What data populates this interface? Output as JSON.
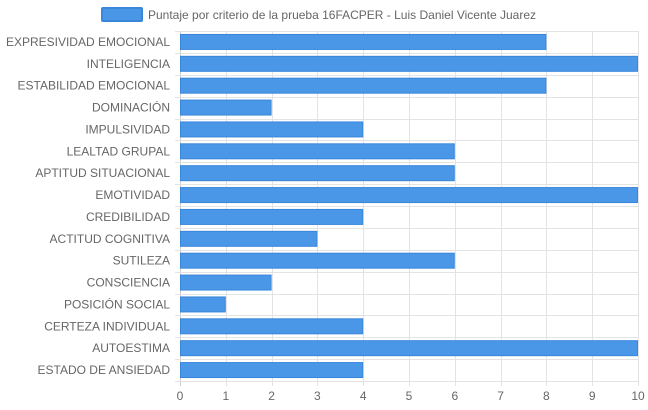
{
  "chart_data": {
    "type": "bar",
    "orientation": "horizontal",
    "categories": [
      "EXPRESIVIDAD EMOCIONAL",
      "INTELIGENCIA",
      "ESTABILIDAD EMOCIONAL",
      "DOMINACIÓN",
      "IMPULSIVIDAD",
      "LEALTAD GRUPAL",
      "APTITUD SITUACIONAL",
      "EMOTIVIDAD",
      "CREDIBILIDAD",
      "ACTITUD COGNITIVA",
      "SUTILEZA",
      "CONSCIENCIA",
      "POSICIÓN SOCIAL",
      "CERTEZA INDIVIDUAL",
      "AUTOESTIMA",
      "ESTADO DE ANSIEDAD"
    ],
    "series": [
      {
        "name": "Puntaje por criterio de la prueba 16FACPER - Luis Daniel Vicente Juarez",
        "values": [
          8,
          10,
          8,
          2,
          4,
          6,
          6,
          10,
          4,
          3,
          6,
          2,
          1,
          4,
          10,
          4
        ]
      }
    ],
    "xlim": [
      0,
      10
    ],
    "xticks": [
      "0",
      "1",
      "2",
      "3",
      "4",
      "5",
      "6",
      "7",
      "8",
      "9",
      "10"
    ],
    "grid": true,
    "legend_position": "top",
    "colors": {
      "bar_fill": "#4a97e8",
      "bar_stroke": "#3a86da",
      "grid": "#e3e3e3",
      "axis": "#cfcfcf",
      "text": "#666666"
    }
  }
}
